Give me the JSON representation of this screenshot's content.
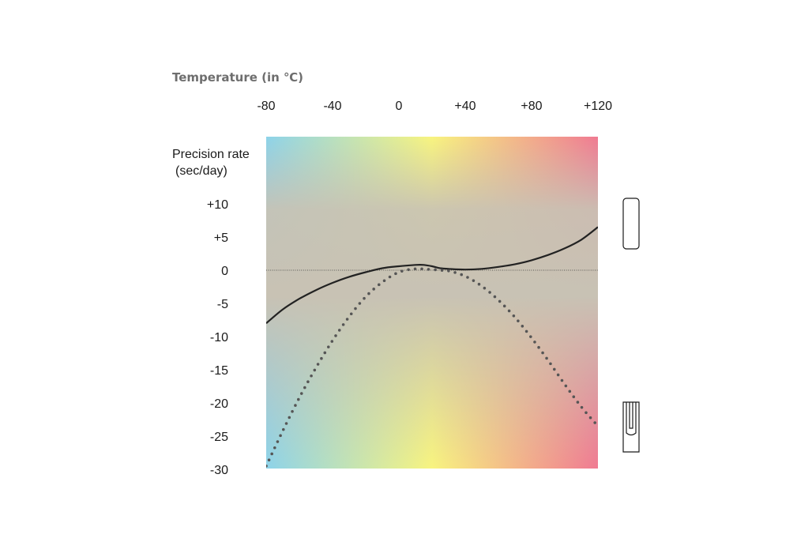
{
  "chart_data": {
    "type": "line",
    "title": "Temperature (in ℃)",
    "ylabel_line1": "Precision rate",
    "ylabel_line2": "(sec/day)",
    "x_ticks": [
      "-80",
      "-40",
      "0",
      "+40",
      "+80",
      "+120"
    ],
    "x_tick_values": [
      -80,
      -40,
      0,
      40,
      80,
      120
    ],
    "y_ticks": [
      "+10",
      "+5",
      "0",
      "-5",
      "-10",
      "-15",
      "-20",
      "-25",
      "-30"
    ],
    "y_tick_values": [
      10,
      5,
      0,
      -5,
      -10,
      -15,
      -20,
      -25,
      -30
    ],
    "xlim": [
      -80,
      120
    ],
    "ylim": [
      -30,
      20
    ],
    "background_gradient": [
      "#8dd3ea",
      "#f8f47f",
      "#f07a92"
    ],
    "series": [
      {
        "style": "solid",
        "color": "#222222",
        "x": [
          -80,
          -70,
          -60,
          -50,
          -40,
          -30,
          -20,
          -10,
          0,
          10,
          15,
          20,
          25,
          30,
          40,
          50,
          60,
          70,
          80,
          90,
          100,
          110,
          120
        ],
        "y": [
          -8,
          -5.9,
          -4.3,
          -3.0,
          -1.9,
          -1.0,
          -0.3,
          0.3,
          0.6,
          0.8,
          0.8,
          0.6,
          0.3,
          0.2,
          0.1,
          0.2,
          0.5,
          0.9,
          1.5,
          2.3,
          3.3,
          4.6,
          6.5
        ]
      },
      {
        "style": "dotted",
        "color": "#555555",
        "x": [
          -80,
          -70,
          -60,
          -50,
          -40,
          -30,
          -20,
          -10,
          0,
          10,
          20,
          25,
          30,
          40,
          50,
          60,
          70,
          80,
          90,
          100,
          110,
          120
        ],
        "y": [
          -29.5,
          -24.2,
          -19.2,
          -14.7,
          -10.6,
          -7.0,
          -4.0,
          -1.8,
          -0.3,
          0.2,
          0.1,
          0.0,
          -0.1,
          -0.9,
          -2.4,
          -4.5,
          -7.1,
          -10.2,
          -13.6,
          -17.2,
          -20.6,
          -23.5
        ]
      }
    ],
    "zero_line": true,
    "legend_icons": [
      "rounded-rectangle-icon",
      "slotted-rectangle-icon"
    ]
  }
}
